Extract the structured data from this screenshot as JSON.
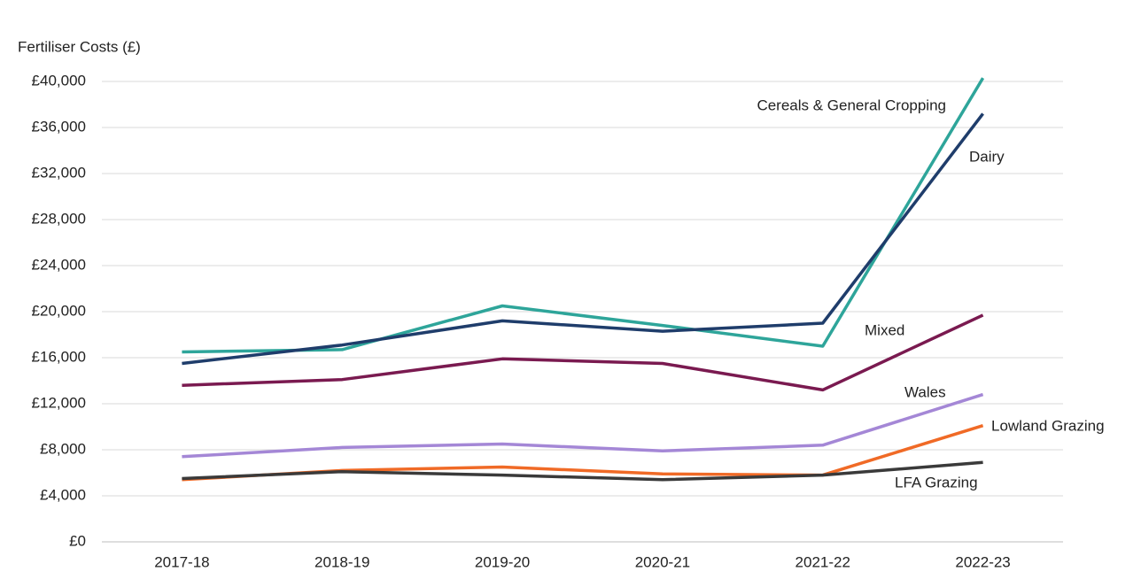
{
  "chart_data": {
    "type": "line",
    "y_axis_label": "Fertiliser Costs (£)",
    "categories": [
      "2017-18",
      "2018-19",
      "2019-20",
      "2020-21",
      "2021-22",
      "2022-23"
    ],
    "series": [
      {
        "name": "Cereals & General Cropping",
        "color": "#2ea59a",
        "values": [
          16500,
          16700,
          20500,
          18800,
          17000,
          40300
        ]
      },
      {
        "name": "Dairy",
        "color": "#1f3d6b",
        "values": [
          15500,
          17100,
          19200,
          18300,
          19000,
          37200
        ]
      },
      {
        "name": "Mixed",
        "color": "#7a1a50",
        "values": [
          13600,
          14100,
          15900,
          15500,
          13200,
          19700
        ]
      },
      {
        "name": "Wales",
        "color": "#a487d6",
        "values": [
          7400,
          8200,
          8500,
          7900,
          8400,
          12800
        ]
      },
      {
        "name": "Lowland Grazing",
        "color": "#f06a26",
        "values": [
          5400,
          6200,
          6500,
          5900,
          5800,
          10100
        ]
      },
      {
        "name": "LFA Grazing",
        "color": "#3a3a3a",
        "values": [
          5500,
          6100,
          5800,
          5400,
          5800,
          6900
        ]
      }
    ],
    "ylim": [
      0,
      40000
    ],
    "yticks": [
      {
        "value": 0,
        "label": "£0"
      },
      {
        "value": 4000,
        "label": "£4,000"
      },
      {
        "value": 8000,
        "label": "£8,000"
      },
      {
        "value": 12000,
        "label": "£12,000"
      },
      {
        "value": 16000,
        "label": "£16,000"
      },
      {
        "value": 20000,
        "label": "£20,000"
      },
      {
        "value": 24000,
        "label": "£24,000"
      },
      {
        "value": 28000,
        "label": "£28,000"
      },
      {
        "value": 32000,
        "label": "£32,000"
      },
      {
        "value": 36000,
        "label": "£36,000"
      },
      {
        "value": 40000,
        "label": "£40,000"
      }
    ],
    "grid": true
  }
}
